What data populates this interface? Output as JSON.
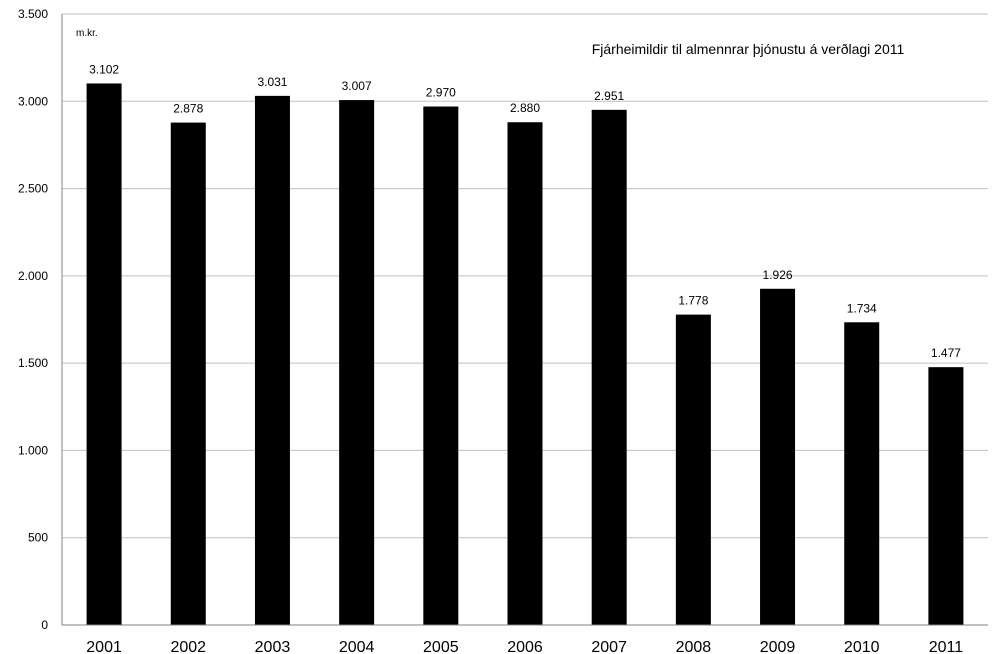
{
  "chart_data": {
    "type": "bar",
    "title": "Fjárheimildir til almennrar þjónustu á verðlagi 2011",
    "ylabel": "m.kr.",
    "xlabel": "",
    "categories": [
      "2001",
      "2002",
      "2003",
      "2004",
      "2005",
      "2006",
      "2007",
      "2008",
      "2009",
      "2010",
      "2011"
    ],
    "values": [
      3102,
      2878,
      3031,
      3007,
      2970,
      2880,
      2951,
      1778,
      1926,
      1734,
      1477
    ],
    "data_labels": [
      "3.102",
      "2.878",
      "3.031",
      "3.007",
      "2.970",
      "2.880",
      "2.951",
      "1.778",
      "1.926",
      "1.734",
      "1.477"
    ],
    "ylim": [
      0,
      3500
    ],
    "yticks": [
      0,
      500,
      1000,
      1500,
      2000,
      2500,
      3000,
      3500
    ],
    "ytick_labels": [
      "0",
      "500",
      "1.000",
      "1.500",
      "2.000",
      "2.500",
      "3.000",
      "3.500"
    ],
    "grid": true,
    "legend": "none",
    "bar_color": "#000000",
    "grid_color": "#c0c0c0"
  }
}
